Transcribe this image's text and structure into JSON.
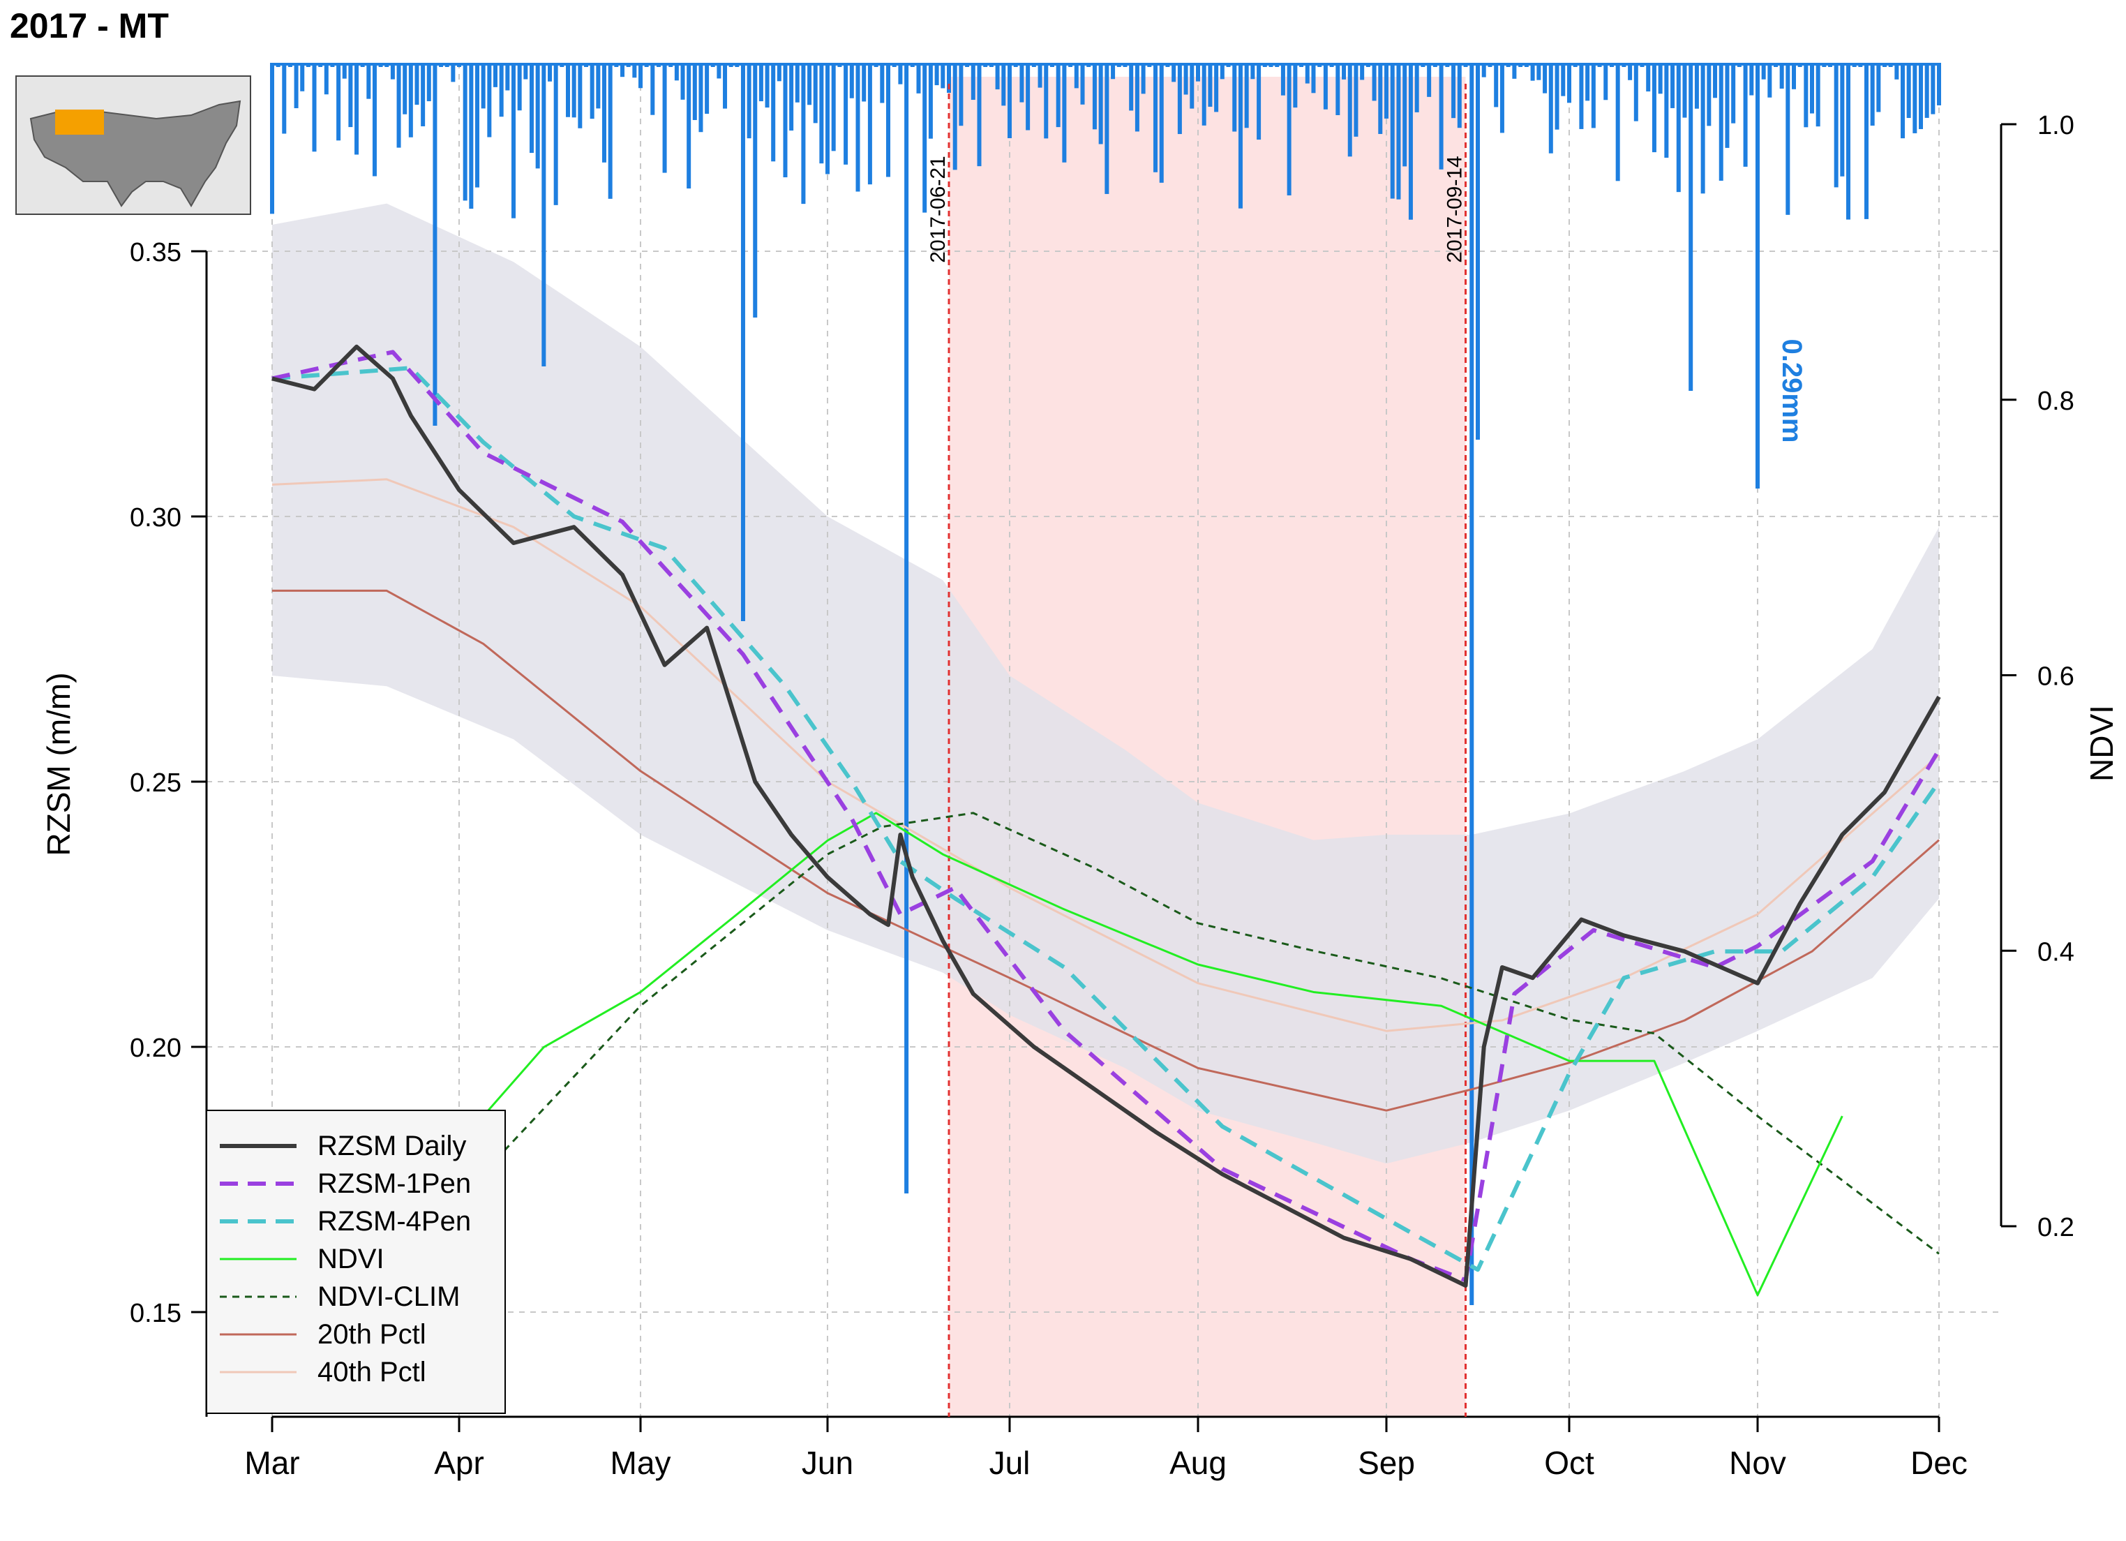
{
  "title": "2017 - MT",
  "inset_map": {
    "icon": "usa-map-icon",
    "highlight_color": "#f5a000"
  },
  "colors": {
    "precip": "#1e7fe0",
    "rzsm": "#3a3a3a",
    "rzsm_1pen": "#9a40e0",
    "rzsm_4pen": "#4ac4cc",
    "ndvi": "#22ee22",
    "ndvi_clim": "#1a5a1a",
    "pctl20": "#c0685a",
    "pctl40": "#f0c8b8",
    "band": "#e2e2ea",
    "drought": "#fde2e2",
    "marker": "#e23030"
  },
  "chart_data": {
    "type": "line",
    "ylabel": "RZSM (m/m)",
    "y2label": "NDVI",
    "ylim": [
      0.13,
      0.37
    ],
    "y2lim": [
      0.2,
      1.0
    ],
    "yticks": [
      "0.15",
      "0.20",
      "0.25",
      "0.30",
      "0.35"
    ],
    "y2ticks": [
      "0.2",
      "0.4",
      "0.6",
      "0.8",
      "1.0"
    ],
    "xticks": [
      "Mar",
      "Apr",
      "May",
      "Jun",
      "Jul",
      "Aug",
      "Sep",
      "Oct",
      "Nov",
      "Dec"
    ],
    "grid": true,
    "legend_position": "bottom-left",
    "drought_period": {
      "start": "2017-06-21",
      "end": "2017-09-14",
      "start_label": "2017-06-21",
      "end_label": "2017-09-14"
    },
    "precip_annotation": "0.29mm",
    "series": [
      {
        "name": "RZSM Daily",
        "style": "solid",
        "x": [
          "2017-03-01",
          "2017-03-08",
          "2017-03-15",
          "2017-03-21",
          "2017-03-24",
          "2017-04-01",
          "2017-04-10",
          "2017-04-20",
          "2017-04-28",
          "2017-05-05",
          "2017-05-12",
          "2017-05-20",
          "2017-05-26",
          "2017-06-01",
          "2017-06-08",
          "2017-06-11",
          "2017-06-13",
          "2017-06-15",
          "2017-06-20",
          "2017-06-25",
          "2017-07-05",
          "2017-07-15",
          "2017-07-25",
          "2017-08-05",
          "2017-08-15",
          "2017-08-25",
          "2017-09-05",
          "2017-09-14",
          "2017-09-17",
          "2017-09-20",
          "2017-09-25",
          "2017-10-03",
          "2017-10-10",
          "2017-10-20",
          "2017-11-01",
          "2017-11-08",
          "2017-11-15",
          "2017-11-22",
          "2017-12-01"
        ],
        "y": [
          0.326,
          0.324,
          0.332,
          0.326,
          0.319,
          0.305,
          0.295,
          0.298,
          0.289,
          0.272,
          0.279,
          0.25,
          0.24,
          0.232,
          0.225,
          0.223,
          0.24,
          0.232,
          0.22,
          0.21,
          0.2,
          0.192,
          0.184,
          0.176,
          0.17,
          0.164,
          0.16,
          0.155,
          0.2,
          0.215,
          0.213,
          0.224,
          0.221,
          0.218,
          0.212,
          0.227,
          0.24,
          0.248,
          0.266
        ]
      },
      {
        "name": "RZSM-1Pen",
        "style": "dashed",
        "x": [
          "2017-03-01",
          "2017-03-21",
          "2017-04-05",
          "2017-04-28",
          "2017-05-18",
          "2017-06-05",
          "2017-06-13",
          "2017-06-22",
          "2017-07-10",
          "2017-08-05",
          "2017-09-05",
          "2017-09-14",
          "2017-09-22",
          "2017-10-05",
          "2017-10-25",
          "2017-11-01",
          "2017-11-20",
          "2017-12-01"
        ],
        "y": [
          0.326,
          0.331,
          0.312,
          0.299,
          0.274,
          0.243,
          0.225,
          0.23,
          0.203,
          0.177,
          0.16,
          0.156,
          0.21,
          0.222,
          0.215,
          0.219,
          0.235,
          0.256
        ]
      },
      {
        "name": "RZSM-4Pen",
        "style": "dashed",
        "x": [
          "2017-03-01",
          "2017-03-24",
          "2017-04-05",
          "2017-04-20",
          "2017-05-05",
          "2017-05-25",
          "2017-06-05",
          "2017-06-13",
          "2017-06-22",
          "2017-07-10",
          "2017-08-05",
          "2017-09-05",
          "2017-09-16",
          "2017-10-01",
          "2017-10-10",
          "2017-10-25",
          "2017-11-05",
          "2017-11-20",
          "2017-12-01"
        ],
        "y": [
          0.326,
          0.328,
          0.314,
          0.3,
          0.294,
          0.268,
          0.25,
          0.235,
          0.228,
          0.215,
          0.185,
          0.165,
          0.158,
          0.195,
          0.213,
          0.218,
          0.218,
          0.232,
          0.25
        ]
      },
      {
        "name": "NDVI",
        "style": "solid",
        "axis": "y2",
        "x": [
          "2017-03-01",
          "2017-04-01",
          "2017-04-15",
          "2017-05-01",
          "2017-05-18",
          "2017-06-01",
          "2017-06-09",
          "2017-06-20",
          "2017-07-10",
          "2017-08-01",
          "2017-08-20",
          "2017-09-10",
          "2017-10-01",
          "2017-10-15",
          "2017-11-01",
          "2017-11-15"
        ],
        "y": [
          0.1,
          0.26,
          0.33,
          0.37,
          0.43,
          0.48,
          0.5,
          0.47,
          0.43,
          0.39,
          0.37,
          0.36,
          0.32,
          0.32,
          0.15,
          0.28
        ]
      },
      {
        "name": "NDVI-CLIM",
        "style": "dotted",
        "axis": "y2",
        "x": [
          "2017-03-01",
          "2017-04-01",
          "2017-05-01",
          "2017-06-01",
          "2017-06-10",
          "2017-06-25",
          "2017-07-15",
          "2017-08-01",
          "2017-08-20",
          "2017-09-10",
          "2017-10-01",
          "2017-10-15",
          "2017-11-01",
          "2017-12-01"
        ],
        "y": [
          0.15,
          0.22,
          0.36,
          0.47,
          0.49,
          0.5,
          0.46,
          0.42,
          0.4,
          0.38,
          0.35,
          0.34,
          0.28,
          0.18
        ]
      },
      {
        "name": "20th Pctl",
        "style": "solid",
        "x": [
          "2017-03-01",
          "2017-03-20",
          "2017-04-05",
          "2017-05-01",
          "2017-06-01",
          "2017-07-01",
          "2017-08-01",
          "2017-09-01",
          "2017-09-15",
          "2017-10-01",
          "2017-10-20",
          "2017-11-10",
          "2017-12-01"
        ],
        "y": [
          0.286,
          0.286,
          0.276,
          0.252,
          0.229,
          0.213,
          0.196,
          0.188,
          0.192,
          0.197,
          0.205,
          0.218,
          0.239
        ]
      },
      {
        "name": "40th Pctl",
        "style": "solid",
        "x": [
          "2017-03-01",
          "2017-03-20",
          "2017-04-10",
          "2017-05-01",
          "2017-06-01",
          "2017-07-01",
          "2017-08-01",
          "2017-09-01",
          "2017-09-20",
          "2017-10-10",
          "2017-11-01",
          "2017-12-01"
        ],
        "y": [
          0.306,
          0.307,
          0.298,
          0.283,
          0.25,
          0.23,
          0.212,
          0.203,
          0.205,
          0.213,
          0.225,
          0.255
        ]
      }
    ],
    "band": {
      "x": [
        "2017-03-01",
        "2017-03-20",
        "2017-04-10",
        "2017-05-01",
        "2017-06-01",
        "2017-06-20",
        "2017-07-01",
        "2017-07-20",
        "2017-08-01",
        "2017-08-20",
        "2017-09-01",
        "2017-09-15",
        "2017-10-01",
        "2017-10-20",
        "2017-11-01",
        "2017-11-20",
        "2017-12-01"
      ],
      "upper": [
        0.355,
        0.359,
        0.348,
        0.332,
        0.3,
        0.288,
        0.27,
        0.256,
        0.246,
        0.239,
        0.24,
        0.24,
        0.244,
        0.252,
        0.258,
        0.275,
        0.298
      ],
      "lower": [
        0.27,
        0.268,
        0.258,
        0.24,
        0.222,
        0.214,
        0.206,
        0.196,
        0.188,
        0.182,
        0.178,
        0.182,
        0.188,
        0.197,
        0.203,
        0.213,
        0.228
      ]
    }
  },
  "precip": {
    "peak_date": "2017-11-01",
    "peak_value_mm": 0.29
  },
  "legend": [
    {
      "label": "RZSM Daily",
      "key": "rzsm",
      "style": "solid"
    },
    {
      "label": "RZSM-1Pen",
      "key": "rzsm_1pen",
      "style": "dashed"
    },
    {
      "label": "RZSM-4Pen",
      "key": "rzsm_4pen",
      "style": "dashed"
    },
    {
      "label": "NDVI",
      "key": "ndvi",
      "style": "solid"
    },
    {
      "label": "NDVI-CLIM",
      "key": "ndvi_clim",
      "style": "dotted"
    },
    {
      "label": "20th Pctl",
      "key": "pctl20",
      "style": "solid"
    },
    {
      "label": "40th Pctl",
      "key": "pctl40",
      "style": "solid"
    }
  ]
}
